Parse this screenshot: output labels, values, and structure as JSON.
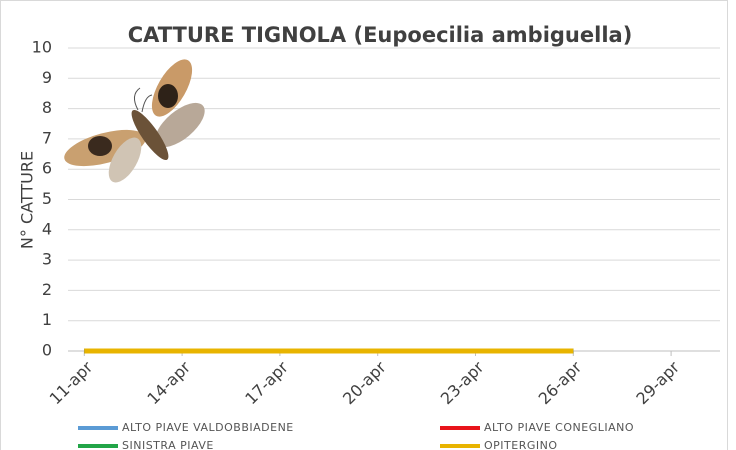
{
  "chart_data": {
    "type": "line",
    "title": "CATTURE TIGNOLA (Eupoecilia ambiguella)",
    "ylabel": "N° CATTURE",
    "x": [
      11,
      14,
      17,
      20,
      23,
      26
    ],
    "series": [
      {
        "name": "ALTO PIAVE VALDOBBIADENE",
        "color": "#5b9bd5",
        "values": [
          0,
          0,
          0,
          0,
          0,
          0
        ]
      },
      {
        "name": "ALTO PIAVE CONEGLIANO",
        "color": "#e8141b",
        "values": [
          0,
          0,
          0,
          0,
          0,
          0
        ]
      },
      {
        "name": "SINISTRA PIAVE",
        "color": "#22a548",
        "values": [
          0,
          0,
          0,
          0,
          0,
          0
        ]
      },
      {
        "name": "OPITERGINO",
        "color": "#e8b400",
        "values": [
          0,
          0,
          0,
          0,
          0,
          0
        ]
      }
    ],
    "xlim": [
      10.5,
      30.5
    ],
    "xticks": [
      {
        "value": 11,
        "label": "11-apr"
      },
      {
        "value": 14,
        "label": "14-apr"
      },
      {
        "value": 17,
        "label": "17-apr"
      },
      {
        "value": 20,
        "label": "20-apr"
      },
      {
        "value": 23,
        "label": "23-apr"
      },
      {
        "value": 26,
        "label": "26-apr"
      },
      {
        "value": 29,
        "label": "29-apr"
      }
    ],
    "ylim": [
      0,
      10
    ],
    "yticks": [
      0,
      1,
      2,
      3,
      4,
      5,
      6,
      7,
      8,
      9,
      10
    ],
    "grid": true
  }
}
